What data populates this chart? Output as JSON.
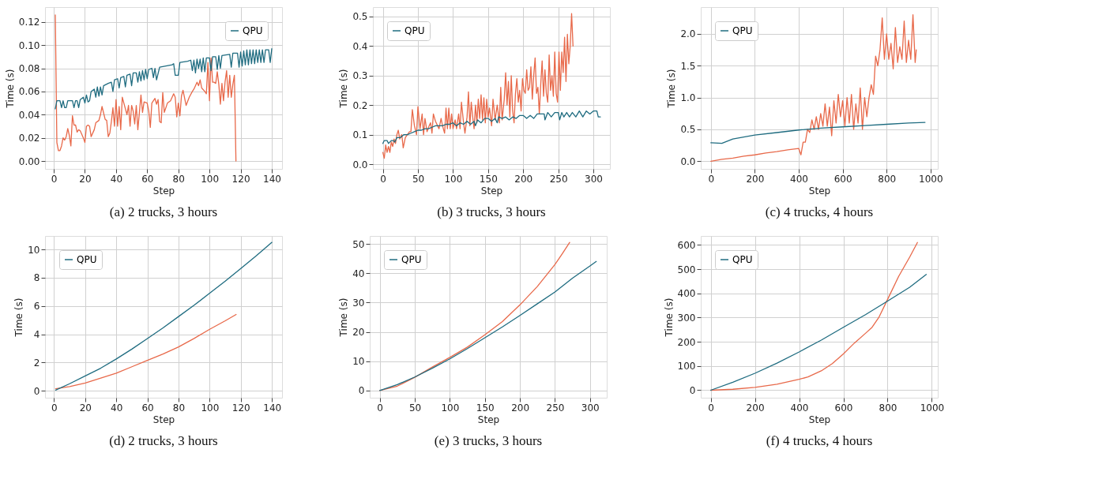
{
  "chart_data": [
    {
      "type": "line",
      "annotations": [
        "(a) 2 trucks, 3 hours"
      ],
      "xlabel": "Step",
      "ylabel": "Time (s)",
      "xlim": [
        -5.6,
        146.6
      ],
      "ylim": [
        -0.0068,
        0.1328
      ],
      "xticks": [
        0,
        20,
        40,
        60,
        80,
        100,
        120,
        140
      ],
      "yticks": [
        {
          "value": 0,
          "label": "0.00"
        },
        {
          "value": 0.02,
          "label": "0.02"
        },
        {
          "value": 0.04,
          "label": "0.04"
        },
        {
          "value": 0.06,
          "label": "0.06"
        },
        {
          "value": 0.08,
          "label": "0.08"
        },
        {
          "value": 0.1,
          "label": "0.10"
        },
        {
          "value": 0.12,
          "label": "0.12"
        }
      ],
      "grid": true,
      "legend": "top right",
      "line_style": "solid",
      "marker": "none",
      "series": [
        {
          "color": "#e8694a",
          "x": [
            1,
            2,
            3,
            4,
            5,
            6,
            7,
            8,
            9,
            10,
            11,
            12,
            13,
            14,
            15,
            16,
            17,
            19,
            20,
            21,
            22,
            23,
            24,
            26,
            27,
            29,
            30,
            31,
            33,
            34,
            35,
            36,
            37,
            38,
            39,
            40,
            41,
            42,
            43,
            44,
            46,
            47,
            48,
            49,
            50,
            51,
            52,
            53,
            54,
            56,
            57,
            58,
            60,
            61,
            62,
            63,
            65,
            66,
            67,
            68,
            69,
            70,
            71,
            73,
            75,
            77,
            78,
            79,
            80,
            81,
            82,
            83,
            85,
            87,
            89,
            90,
            92,
            93,
            94,
            95,
            97,
            98,
            99,
            100,
            101,
            102,
            103,
            104,
            105,
            106,
            107,
            108,
            109,
            110,
            111,
            112,
            113,
            114,
            115,
            116,
            117
          ],
          "values": [
            0.126,
            0.016,
            0.009,
            0.009,
            0.013,
            0.02,
            0.018,
            0.021,
            0.028,
            0.022,
            0.013,
            0.039,
            0.031,
            0.031,
            0.025,
            0.027,
            0.026,
            0.02,
            0.016,
            0.03,
            0.031,
            0.03,
            0.021,
            0.027,
            0.033,
            0.035,
            0.04,
            0.047,
            0.036,
            0.035,
            0.021,
            0.024,
            0.034,
            0.046,
            0.03,
            0.053,
            0.03,
            0.047,
            0.027,
            0.055,
            0.045,
            0.04,
            0.048,
            0.03,
            0.048,
            0.043,
            0.032,
            0.048,
            0.027,
            0.057,
            0.042,
            0.051,
            0.05,
            0.043,
            0.029,
            0.05,
            0.054,
            0.049,
            0.053,
            0.034,
            0.033,
            0.059,
            0.042,
            0.05,
            0.052,
            0.058,
            0.055,
            0.038,
            0.05,
            0.039,
            0.056,
            0.061,
            0.048,
            0.055,
            0.06,
            0.062,
            0.068,
            0.065,
            0.07,
            0.063,
            0.06,
            0.058,
            0.085,
            0.052,
            0.089,
            0.068,
            0.068,
            0.067,
            0.077,
            0.066,
            0.049,
            0.067,
            0.052,
            0.068,
            0.078,
            0.055,
            0.074,
            0.055,
            0.066,
            0.074,
            0.0
          ]
        },
        {
          "name": "QPU",
          "color": "#1f6c80",
          "x": [
            1,
            2,
            4,
            5,
            6,
            7,
            8,
            9,
            11,
            12,
            13,
            14,
            15,
            16,
            17,
            19,
            20,
            21,
            22,
            23,
            24,
            26,
            27,
            28,
            29,
            30,
            31,
            32,
            35,
            37,
            38,
            39,
            41,
            42,
            43,
            45,
            46,
            47,
            49,
            50,
            51,
            53,
            54,
            55,
            56,
            57,
            58,
            59,
            60,
            61,
            63,
            64,
            65,
            66,
            68,
            72,
            76,
            77,
            78,
            80,
            81,
            86,
            88,
            89,
            90,
            91,
            92,
            93,
            94,
            95,
            96,
            97,
            98,
            100,
            101,
            102,
            104,
            105,
            106,
            107,
            108,
            113,
            114,
            115,
            118,
            119,
            120,
            121,
            122,
            123,
            124,
            125,
            126,
            127,
            128,
            129,
            130,
            131,
            132,
            133,
            134,
            135,
            136,
            138,
            139,
            140
          ],
          "values": [
            0.045,
            0.052,
            0.052,
            0.046,
            0.052,
            0.046,
            0.046,
            0.052,
            0.052,
            0.052,
            0.046,
            0.052,
            0.052,
            0.046,
            0.053,
            0.055,
            0.05,
            0.057,
            0.051,
            0.052,
            0.06,
            0.062,
            0.055,
            0.064,
            0.056,
            0.064,
            0.057,
            0.065,
            0.067,
            0.068,
            0.06,
            0.07,
            0.071,
            0.063,
            0.072,
            0.073,
            0.064,
            0.074,
            0.075,
            0.065,
            0.076,
            0.076,
            0.068,
            0.077,
            0.069,
            0.078,
            0.07,
            0.079,
            0.071,
            0.079,
            0.08,
            0.072,
            0.08,
            0.07,
            0.081,
            0.082,
            0.083,
            0.084,
            0.074,
            0.074,
            0.085,
            0.086,
            0.087,
            0.078,
            0.087,
            0.076,
            0.088,
            0.08,
            0.088,
            0.077,
            0.089,
            0.077,
            0.089,
            0.089,
            0.078,
            0.09,
            0.09,
            0.079,
            0.091,
            0.08,
            0.091,
            0.092,
            0.081,
            0.093,
            0.093,
            0.081,
            0.094,
            0.082,
            0.095,
            0.083,
            0.096,
            0.083,
            0.096,
            0.084,
            0.096,
            0.084,
            0.096,
            0.085,
            0.096,
            0.085,
            0.096,
            0.085,
            0.096,
            0.096,
            0.085,
            0.097
          ]
        }
      ]
    },
    {
      "type": "line",
      "annotations": [
        "(b) 3 trucks, 3 hours"
      ],
      "xlabel": "Step",
      "ylabel": "Time (s)",
      "xlim": [
        -14.2,
        323.6
      ],
      "ylim": [
        -0.016,
        0.532
      ],
      "xticks": [
        0,
        50,
        100,
        150,
        200,
        250,
        300
      ],
      "yticks": [
        {
          "value": 0,
          "label": "0.0"
        },
        0.1,
        0.2,
        0.3,
        0.4,
        0.5
      ],
      "grid": true,
      "legend": "top left",
      "line_style": "solid",
      "marker": "none",
      "series": [
        {
          "color": "#e8694a",
          "x": [
            0,
            2,
            4,
            6,
            8,
            10,
            12,
            14,
            16,
            18,
            20,
            22,
            24,
            27,
            29,
            32,
            35,
            38,
            40,
            42,
            45,
            48,
            50,
            53,
            56,
            58,
            60,
            63,
            66,
            68,
            70,
            72,
            75,
            78,
            80,
            83,
            85,
            88,
            90,
            92,
            94,
            96,
            98,
            100,
            103,
            105,
            108,
            110,
            112,
            115,
            117,
            120,
            122,
            124,
            126,
            128,
            130,
            132,
            134,
            136,
            138,
            140,
            142,
            144,
            146,
            148,
            150,
            152,
            155,
            157,
            160,
            163,
            166,
            168,
            170,
            173,
            175,
            177,
            179,
            181,
            183,
            185,
            187,
            189,
            191,
            193,
            195,
            197,
            199,
            201,
            203,
            205,
            207,
            209,
            211,
            213,
            215,
            217,
            219,
            221,
            223,
            225,
            227,
            229,
            231,
            233,
            235,
            237,
            239,
            241,
            243,
            245,
            247,
            249,
            251,
            253,
            255,
            257,
            259,
            261,
            263,
            265,
            267,
            269,
            271
          ],
          "values": [
            0.04,
            0.02,
            0.065,
            0.04,
            0.06,
            0.04,
            0.075,
            0.06,
            0.085,
            0.07,
            0.1,
            0.115,
            0.085,
            0.1,
            0.055,
            0.09,
            0.1,
            0.11,
            0.11,
            0.185,
            0.13,
            0.1,
            0.195,
            0.12,
            0.17,
            0.1,
            0.155,
            0.11,
            0.13,
            0.14,
            0.105,
            0.17,
            0.145,
            0.13,
            0.12,
            0.155,
            0.13,
            0.105,
            0.19,
            0.12,
            0.19,
            0.12,
            0.17,
            0.12,
            0.15,
            0.12,
            0.17,
            0.12,
            0.21,
            0.14,
            0.105,
            0.16,
            0.245,
            0.13,
            0.21,
            0.16,
            0.12,
            0.2,
            0.14,
            0.22,
            0.155,
            0.235,
            0.15,
            0.225,
            0.14,
            0.22,
            0.16,
            0.19,
            0.13,
            0.22,
            0.15,
            0.2,
            0.14,
            0.26,
            0.15,
            0.22,
            0.31,
            0.2,
            0.28,
            0.16,
            0.3,
            0.18,
            0.14,
            0.24,
            0.29,
            0.21,
            0.25,
            0.18,
            0.29,
            0.25,
            0.24,
            0.32,
            0.25,
            0.26,
            0.33,
            0.22,
            0.3,
            0.36,
            0.24,
            0.26,
            0.17,
            0.27,
            0.35,
            0.23,
            0.32,
            0.24,
            0.21,
            0.37,
            0.25,
            0.3,
            0.23,
            0.38,
            0.24,
            0.21,
            0.38,
            0.25,
            0.38,
            0.31,
            0.43,
            0.28,
            0.44,
            0.34,
            0.4,
            0.51,
            0.4
          ]
        },
        {
          "name": "QPU",
          "color": "#1f6c80",
          "x": [
            0,
            2,
            6,
            8,
            12,
            15,
            17,
            20,
            25,
            30,
            35,
            40,
            45,
            50,
            55,
            60,
            65,
            70,
            75,
            80,
            85,
            90,
            95,
            100,
            105,
            110,
            115,
            120,
            125,
            130,
            132,
            135,
            140,
            145,
            150,
            155,
            160,
            163,
            165,
            170,
            175,
            180,
            185,
            190,
            195,
            200,
            205,
            210,
            215,
            220,
            225,
            230,
            231,
            235,
            240,
            245,
            250,
            252,
            255,
            258,
            262,
            266,
            270,
            275,
            280,
            285,
            290,
            295,
            300,
            305,
            307,
            310
          ],
          "values": [
            0.07,
            0.08,
            0.08,
            0.07,
            0.08,
            0.08,
            0.075,
            0.09,
            0.09,
            0.1,
            0.1,
            0.105,
            0.11,
            0.115,
            0.115,
            0.12,
            0.12,
            0.125,
            0.13,
            0.13,
            0.13,
            0.135,
            0.135,
            0.14,
            0.13,
            0.14,
            0.135,
            0.145,
            0.135,
            0.145,
            0.13,
            0.15,
            0.14,
            0.155,
            0.155,
            0.145,
            0.155,
            0.14,
            0.16,
            0.155,
            0.16,
            0.15,
            0.16,
            0.155,
            0.165,
            0.165,
            0.155,
            0.165,
            0.155,
            0.17,
            0.17,
            0.17,
            0.15,
            0.175,
            0.16,
            0.175,
            0.175,
            0.15,
            0.175,
            0.16,
            0.175,
            0.16,
            0.175,
            0.16,
            0.18,
            0.16,
            0.18,
            0.17,
            0.18,
            0.18,
            0.16,
            0.16
          ]
        }
      ]
    },
    {
      "type": "line",
      "annotations": [
        "(c) 4 trucks, 4 hours"
      ],
      "xlabel": "Step",
      "ylabel": "Time (s)",
      "xlim": [
        -46,
        1033
      ],
      "ylim": [
        -0.12,
        2.42
      ],
      "xticks": [
        0,
        200,
        400,
        600,
        800,
        1000
      ],
      "yticks": [
        {
          "value": 0,
          "label": "0.0"
        },
        0.5,
        {
          "value": 1,
          "label": "1.0"
        },
        1.5,
        {
          "value": 2,
          "label": "2.0"
        }
      ],
      "grid": true,
      "legend": "top left",
      "line_style": "solid",
      "marker": "none",
      "series": [
        {
          "color": "#e8694a",
          "x": [
            0,
            50,
            100,
            150,
            200,
            250,
            300,
            350,
            400,
            410,
            420,
            430,
            440,
            450,
            460,
            470,
            480,
            490,
            500,
            510,
            520,
            530,
            540,
            550,
            560,
            570,
            580,
            590,
            600,
            610,
            620,
            630,
            640,
            650,
            660,
            670,
            680,
            690,
            700,
            710,
            720,
            730,
            740,
            750,
            760,
            770,
            780,
            790,
            800,
            810,
            820,
            830,
            840,
            850,
            860,
            870,
            880,
            890,
            900,
            910,
            920,
            930,
            935
          ],
          "values": [
            0.0,
            0.03,
            0.05,
            0.08,
            0.1,
            0.13,
            0.15,
            0.18,
            0.2,
            0.1,
            0.3,
            0.3,
            0.5,
            0.45,
            0.65,
            0.5,
            0.7,
            0.5,
            0.75,
            0.55,
            0.9,
            0.55,
            0.85,
            0.4,
            0.95,
            0.6,
            1.05,
            0.7,
            0.95,
            0.55,
            1.0,
            0.6,
            1.05,
            0.5,
            0.9,
            0.6,
            1.15,
            0.5,
            1.0,
            0.7,
            1.0,
            1.2,
            1.05,
            1.65,
            1.5,
            1.75,
            2.25,
            1.6,
            2.0,
            1.6,
            1.85,
            1.45,
            2.1,
            1.55,
            1.8,
            1.6,
            2.2,
            1.55,
            1.9,
            1.6,
            2.3,
            1.55,
            1.75
          ]
        },
        {
          "name": "QPU",
          "color": "#1f6c80",
          "x": [
            0,
            50,
            100,
            200,
            300,
            400,
            500,
            600,
            700,
            800,
            900,
            975
          ],
          "values": [
            0.29,
            0.28,
            0.35,
            0.41,
            0.45,
            0.49,
            0.52,
            0.54,
            0.56,
            0.58,
            0.6,
            0.61
          ]
        }
      ]
    },
    {
      "type": "line",
      "annotations": [
        "(d) 2 trucks, 3 hours"
      ],
      "xlabel": "Step",
      "ylabel": "Time (s)",
      "xlim": [
        -5.8,
        146.5
      ],
      "ylim": [
        -0.49,
        10.95
      ],
      "xticks": [
        0,
        20,
        40,
        60,
        80,
        100,
        120,
        140
      ],
      "yticks": [
        0,
        2,
        4,
        6,
        8,
        10
      ],
      "grid": true,
      "legend": "top left",
      "line_style": "solid",
      "marker": "none",
      "series": [
        {
          "color": "#e8694a",
          "x": [
            1,
            10,
            20,
            30,
            40,
            50,
            60,
            70,
            80,
            90,
            100,
            110,
            117
          ],
          "values": [
            0.15,
            0.3,
            0.55,
            0.9,
            1.25,
            1.7,
            2.15,
            2.6,
            3.1,
            3.7,
            4.35,
            4.95,
            5.4
          ]
        },
        {
          "name": "QPU",
          "color": "#1f6c80",
          "x": [
            1,
            10,
            20,
            30,
            40,
            50,
            60,
            70,
            80,
            90,
            100,
            110,
            120,
            130,
            140
          ],
          "values": [
            0.05,
            0.5,
            1.05,
            1.6,
            2.25,
            2.95,
            3.7,
            4.45,
            5.25,
            6.05,
            6.9,
            7.75,
            8.65,
            9.55,
            10.5
          ]
        }
      ]
    },
    {
      "type": "line",
      "annotations": [
        "(e) 3 trucks, 3 hours"
      ],
      "xlabel": "Step",
      "ylabel": "Time (s)",
      "xlim": [
        -14.3,
        323.9
      ],
      "ylim": [
        -2.46,
        52.7
      ],
      "xticks": [
        0,
        50,
        100,
        150,
        200,
        250,
        300
      ],
      "yticks": [
        0,
        10,
        20,
        30,
        40,
        50
      ],
      "grid": true,
      "legend": "top left",
      "line_style": "solid",
      "marker": "none",
      "series": [
        {
          "color": "#e8694a",
          "x": [
            0,
            25,
            50,
            75,
            100,
            125,
            150,
            175,
            200,
            225,
            250,
            260,
            271
          ],
          "values": [
            0,
            1.5,
            4.5,
            8,
            11.3,
            14.8,
            19,
            23.5,
            29.2,
            35.5,
            43,
            46.5,
            50.5
          ]
        },
        {
          "name": "QPU",
          "color": "#1f6c80",
          "x": [
            0,
            25,
            50,
            75,
            100,
            125,
            150,
            175,
            200,
            225,
            250,
            275,
            300,
            309
          ],
          "values": [
            0,
            2,
            4.6,
            7.6,
            10.8,
            14.3,
            18,
            21.7,
            25.6,
            29.6,
            33.6,
            38.3,
            42.5,
            44
          ]
        }
      ]
    },
    {
      "type": "line",
      "annotations": [
        "(f) 4 trucks, 4 hours"
      ],
      "xlabel": "Step",
      "ylabel": "Time (s)",
      "xlim": [
        -45,
        1027
      ],
      "ylim": [
        -31,
        637
      ],
      "xticks": [
        0,
        200,
        400,
        600,
        800,
        1000
      ],
      "yticks": [
        0,
        100,
        200,
        300,
        400,
        500,
        600
      ],
      "grid": true,
      "legend": "top left",
      "line_style": "solid",
      "marker": "none",
      "series": [
        {
          "color": "#e8694a",
          "x": [
            0,
            100,
            200,
            300,
            400,
            440,
            500,
            550,
            600,
            650,
            700,
            730,
            760,
            800,
            850,
            900,
            935
          ],
          "values": [
            0,
            4,
            12,
            25,
            45,
            55,
            80,
            110,
            150,
            195,
            235,
            260,
            300,
            375,
            470,
            550,
            610
          ]
        },
        {
          "name": "QPU",
          "color": "#1f6c80",
          "x": [
            0,
            100,
            200,
            300,
            400,
            500,
            600,
            700,
            800,
            900,
            975
          ],
          "values": [
            0,
            33,
            70,
            112,
            158,
            207,
            260,
            312,
            368,
            425,
            478
          ]
        }
      ]
    }
  ]
}
